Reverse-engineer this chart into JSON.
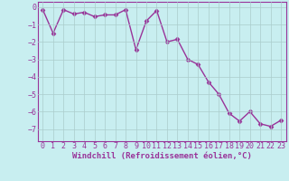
{
  "x": [
    0,
    1,
    2,
    3,
    4,
    5,
    6,
    7,
    8,
    9,
    10,
    11,
    12,
    13,
    14,
    15,
    16,
    17,
    18,
    19,
    20,
    21,
    22,
    23
  ],
  "y": [
    -0.15,
    -1.5,
    -0.15,
    -0.4,
    -0.3,
    -0.55,
    -0.45,
    -0.45,
    -0.15,
    -2.45,
    -0.8,
    -0.2,
    -2.0,
    -1.85,
    -3.0,
    -3.3,
    -4.3,
    -5.0,
    -6.1,
    -6.55,
    -6.0,
    -6.7,
    -6.85,
    -6.5
  ],
  "line_color": "#993399",
  "marker": "D",
  "marker_size": 2.5,
  "bg_color": "#c8eef0",
  "grid_color": "#aacccc",
  "xlabel": "Windchill (Refroidissement éolien,°C)",
  "xlim": [
    -0.5,
    23.5
  ],
  "ylim": [
    -7.7,
    0.3
  ],
  "xticks": [
    0,
    1,
    2,
    3,
    4,
    5,
    6,
    7,
    8,
    9,
    10,
    11,
    12,
    13,
    14,
    15,
    16,
    17,
    18,
    19,
    20,
    21,
    22,
    23
  ],
  "yticks": [
    0,
    -1,
    -2,
    -3,
    -4,
    -5,
    -6,
    -7
  ],
  "xlabel_fontsize": 6.5,
  "tick_fontsize": 6,
  "line_width": 1.0
}
